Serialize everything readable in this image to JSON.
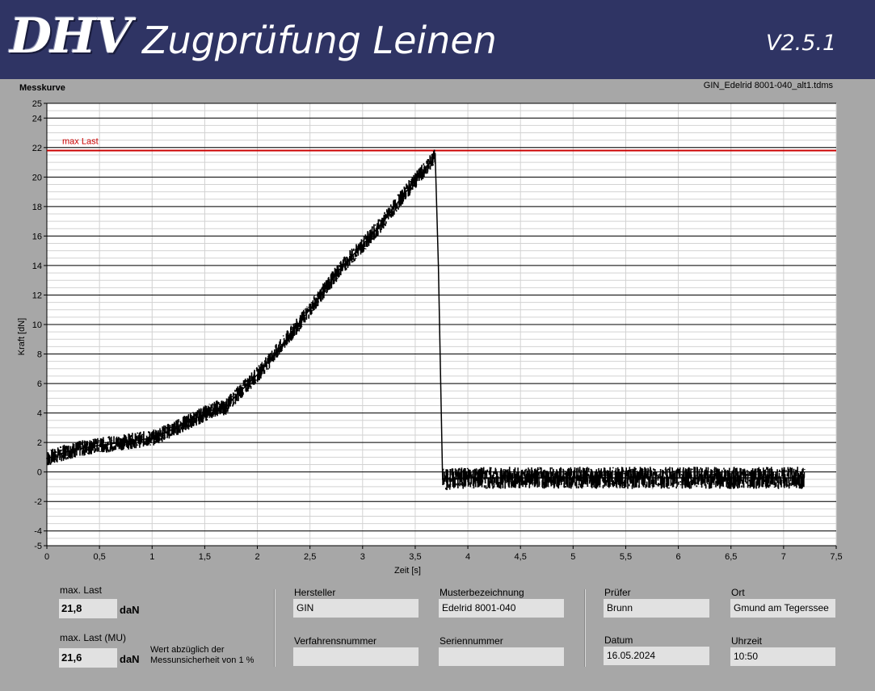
{
  "header": {
    "logo": "DHV",
    "title": "Zugprüfung Leinen",
    "version": "V2.5.1"
  },
  "plot": {
    "title": "Messkurve",
    "file": "GIN_Edelrid 8001-040_alt1.tdms"
  },
  "chart_data": {
    "type": "line",
    "title": "",
    "xlabel": "Zeit [s]",
    "ylabel": "Kraft [dN]",
    "xlim": [
      0,
      7.5
    ],
    "ylim": [
      -5,
      25
    ],
    "x_ticks": [
      "0",
      "0,5",
      "1",
      "1,5",
      "2",
      "2,5",
      "3",
      "3,5",
      "4",
      "4,5",
      "5",
      "5,5",
      "6",
      "6,5",
      "7",
      "7,5"
    ],
    "y_ticks": [
      "-5",
      "-4",
      "-2",
      "0",
      "2",
      "4",
      "6",
      "8",
      "10",
      "12",
      "14",
      "16",
      "18",
      "20",
      "22",
      "24",
      "25"
    ],
    "grid": true,
    "colors": {
      "series": "#000000",
      "max_line": "#cc0000"
    },
    "max_line": {
      "label": "max Last",
      "value": 21.8
    },
    "series": [
      {
        "x": [
          0,
          0.2,
          0.4,
          0.6,
          0.8,
          1.0,
          1.2,
          1.4,
          1.6,
          1.7,
          1.8,
          2.0,
          2.2,
          2.4,
          2.6,
          2.8,
          3.0,
          3.2,
          3.4,
          3.6,
          3.69,
          3.72,
          3.76,
          4.0,
          4.5,
          5.0,
          5.5,
          6.0,
          6.5,
          7.0,
          7.2
        ],
        "y": [
          0.9,
          1.4,
          1.7,
          1.9,
          2.1,
          2.3,
          2.9,
          3.6,
          4.3,
          4.4,
          5.2,
          6.6,
          8.3,
          10.1,
          12.0,
          13.9,
          15.4,
          17.0,
          18.9,
          20.6,
          21.4,
          14.0,
          -0.5,
          -0.4,
          -0.4,
          -0.4,
          -0.4,
          -0.4,
          -0.4,
          -0.4,
          -0.4
        ]
      }
    ]
  },
  "results": {
    "max_load_label": "max. Last",
    "max_load_value": "21,8",
    "max_load_unit": "daN",
    "max_load_mu_label": "max. Last (MU)",
    "max_load_mu_value": "21,6",
    "max_load_mu_unit": "daN",
    "mu_note_line1": "Wert abzüglich der",
    "mu_note_line2": "Messunsicherheit von 1 %"
  },
  "info": {
    "hersteller_label": "Hersteller",
    "hersteller_value": "GIN",
    "muster_label": "Musterbezeichnung",
    "muster_value": "Edelrid 8001-040",
    "verfahren_label": "Verfahrensnummer",
    "verfahren_value": "",
    "serien_label": "Seriennummer",
    "serien_value": "",
    "pruefer_label": "Prüfer",
    "pruefer_value": "Brunn",
    "ort_label": "Ort",
    "ort_value": "Gmund am Tegerssee",
    "datum_label": "Datum",
    "datum_value": "16.05.2024",
    "uhrzeit_label": "Uhrzeit",
    "uhrzeit_value": "10:50"
  }
}
